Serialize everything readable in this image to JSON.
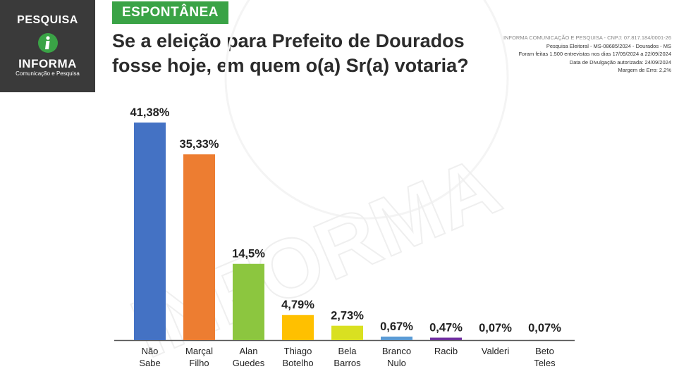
{
  "logo": {
    "top_text": "PESQUISA",
    "brand": "INFORMA",
    "subtitle": "Comunicação e Pesquisa",
    "icon": "info-i-icon"
  },
  "tag": "ESPONTÂNEA",
  "question_lines": [
    "Se a eleição para Prefeito de Dourados",
    "fosse hoje, em quem o(a) Sr(a) votaria?"
  ],
  "meta": [
    "INFORMA COMUNICAÇÃO E PESQUISA - CNPJ: 07.817.184/0001-26",
    "Pesquisa Eleitoral - MS-08685/2024 - Dourados - MS",
    "Foram feitas 1.500 entrevistas nos dias 17/09/2024 a 22/09/2024",
    "Data de Divulgação autorizada: 24/09/2024",
    "Margem de Erro: 2,2%"
  ],
  "watermark": "INFORMA Comunicação e Pesquisa",
  "colors": {
    "logo_bg": "#3a3a3a",
    "tag_bg": "#3aa346",
    "axis": "#555555"
  },
  "chart_data": {
    "type": "bar",
    "title": "",
    "xlabel": "",
    "ylabel": "",
    "ylim": [
      0,
      45
    ],
    "grid": false,
    "categories": [
      [
        "Não",
        "Sabe"
      ],
      [
        "Marçal",
        "Filho"
      ],
      [
        "Alan",
        "Guedes"
      ],
      [
        "Thiago",
        "Botelho"
      ],
      [
        "Bela",
        "Barros"
      ],
      [
        "Branco",
        "Nulo"
      ],
      [
        "Racib"
      ],
      [
        "Valderi"
      ],
      [
        "Beto",
        "Teles"
      ]
    ],
    "values": [
      41.38,
      35.33,
      14.5,
      4.79,
      2.73,
      0.67,
      0.47,
      0.07,
      0.07
    ],
    "value_labels": [
      "41,38%",
      "35,33%",
      "14,5%",
      "4,79%",
      "2,73%",
      "0,67%",
      "0,47%",
      "0,07%",
      "0,07%"
    ],
    "bar_colors": [
      "#4472c4",
      "#ed7d31",
      "#8cc63f",
      "#ffc000",
      "#d9e021",
      "#5b9bd5",
      "#7030a0",
      "#a0a0a0",
      "#a0a0a0"
    ]
  }
}
